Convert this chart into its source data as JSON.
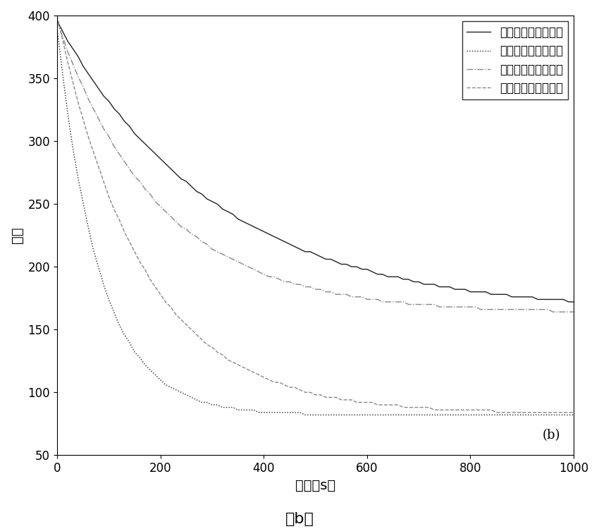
{
  "xlim": [
    0,
    1000
  ],
  "ylim": [
    50,
    400
  ],
  "xticks": [
    0,
    200,
    400,
    600,
    800,
    1000
  ],
  "yticks": [
    50,
    100,
    150,
    200,
    250,
    300,
    350,
    400
  ],
  "xlabel": "时间（s）",
  "ylabel": "密度",
  "annotation": "(b)",
  "bottom_label": "（b）",
  "legend": [
    {
      "label": "无控制下的上游路段",
      "color": "#222222",
      "linestyle": "solid",
      "linewidth": 1.0
    },
    {
      "label": "无控制下的下游路段",
      "color": "#222222",
      "linestyle": "dotted",
      "linewidth": 1.0
    },
    {
      "label": "有控制下的下游路段",
      "color": "#888888",
      "linestyle": "dashdot",
      "linewidth": 1.0
    },
    {
      "label": "有控制下的上游路段",
      "color": "#888888",
      "linestyle": "dashed",
      "linewidth": 1.0
    }
  ],
  "background_color": "#ffffff",
  "font_size_tick": 12,
  "font_size_label": 14,
  "font_size_legend": 12
}
